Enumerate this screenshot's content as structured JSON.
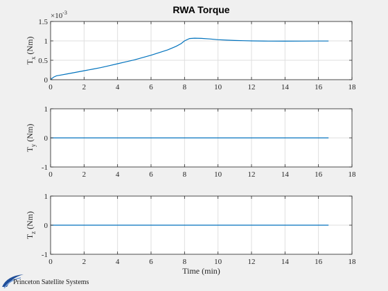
{
  "chart_data": [
    {
      "type": "line",
      "title": "RWA Torque",
      "xlabel": "",
      "ylabel_main": "T",
      "ylabel_sub": "x",
      "ylabel_unit": "(Nm)",
      "exponent_label": "×10",
      "exponent_power": "-3",
      "xlim": [
        0,
        18
      ],
      "ylim": [
        0,
        1.5
      ],
      "xticks": [
        "0",
        "2",
        "4",
        "6",
        "8",
        "10",
        "12",
        "14",
        "16",
        "18"
      ],
      "yticks": [
        "0",
        "0.5",
        "1",
        "1.5"
      ],
      "grid": true,
      "series": [
        {
          "color": "#0072bd",
          "x": [
            0,
            0.1,
            0.2,
            0.35,
            0.5,
            1,
            1.5,
            2,
            2.5,
            3,
            3.5,
            4,
            4.5,
            5,
            5.5,
            6,
            6.5,
            7,
            7.5,
            7.8,
            8,
            8.3,
            8.6,
            9,
            9.5,
            10,
            10.5,
            11,
            11.5,
            12,
            13,
            14,
            15,
            16,
            16.6
          ],
          "y": [
            0,
            0.04,
            0.07,
            0.1,
            0.11,
            0.15,
            0.19,
            0.23,
            0.27,
            0.31,
            0.36,
            0.41,
            0.46,
            0.51,
            0.57,
            0.63,
            0.7,
            0.77,
            0.86,
            0.93,
            1.0,
            1.06,
            1.07,
            1.065,
            1.05,
            1.03,
            1.02,
            1.01,
            1.005,
            1.0,
            0.995,
            0.993,
            0.995,
            0.997,
            0.997
          ]
        }
      ]
    },
    {
      "type": "line",
      "title": "",
      "xlabel": "",
      "ylabel_main": "T",
      "ylabel_sub": "y",
      "ylabel_unit": "(Nm)",
      "xlim": [
        0,
        18
      ],
      "ylim": [
        -1,
        1
      ],
      "xticks": [
        "0",
        "2",
        "4",
        "6",
        "8",
        "10",
        "12",
        "14",
        "16",
        "18"
      ],
      "yticks": [
        "-1",
        "0",
        "1"
      ],
      "grid": true,
      "series": [
        {
          "color": "#0072bd",
          "x": [
            0,
            16.6
          ],
          "y": [
            0,
            0
          ]
        }
      ]
    },
    {
      "type": "line",
      "title": "",
      "xlabel": "Time (min)",
      "ylabel_main": "T",
      "ylabel_sub": "z",
      "ylabel_unit": "(Nm)",
      "xlim": [
        0,
        18
      ],
      "ylim": [
        -1,
        1
      ],
      "xticks": [
        "0",
        "2",
        "4",
        "6",
        "8",
        "10",
        "12",
        "14",
        "16",
        "18"
      ],
      "yticks": [
        "-1",
        "0",
        "1"
      ],
      "grid": true,
      "series": [
        {
          "color": "#0072bd",
          "x": [
            0,
            16.6
          ],
          "y": [
            0,
            0
          ]
        }
      ]
    }
  ],
  "logo": {
    "text": "Princeton Satellite Systems",
    "icon": "swoosh-logo-icon",
    "color": "#1f4e99"
  }
}
